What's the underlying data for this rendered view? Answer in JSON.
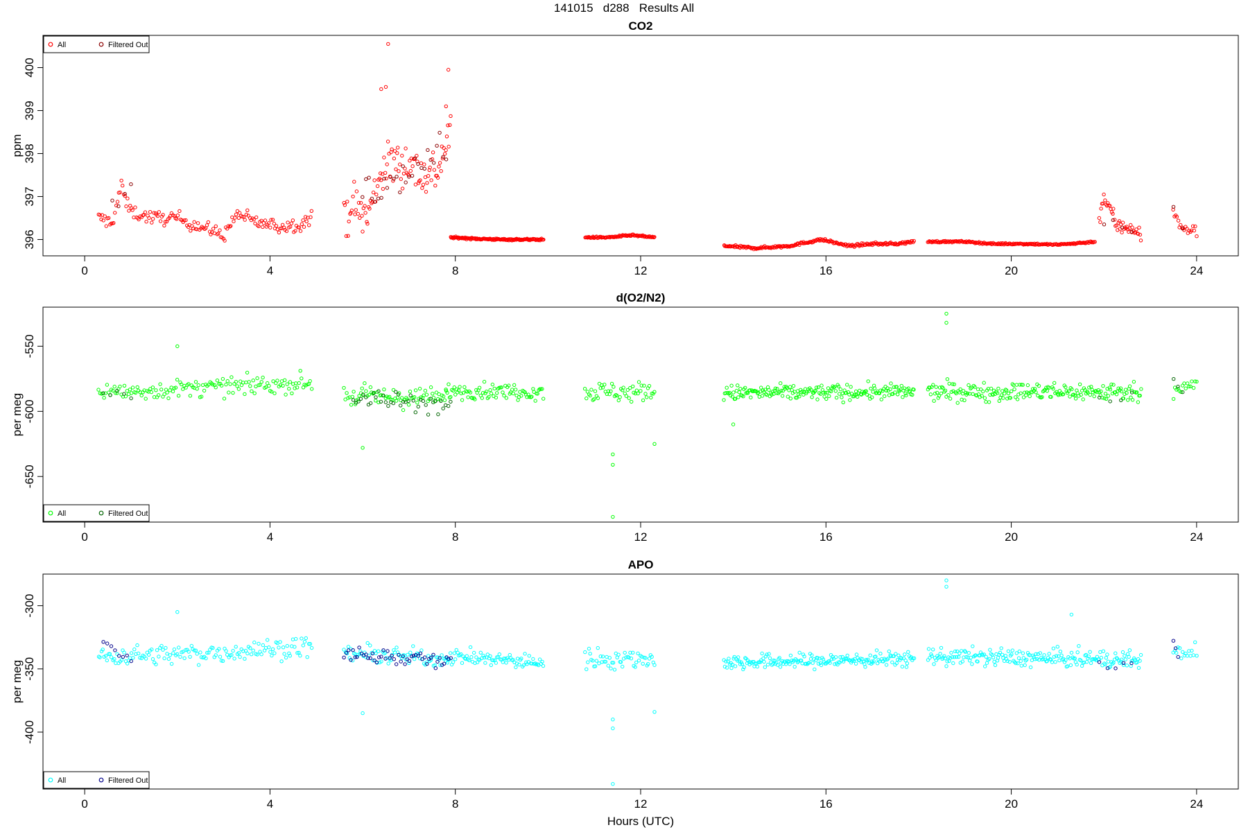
{
  "header": {
    "run": "141015",
    "code": "d288",
    "label": "Results All"
  },
  "colors": {
    "co2": "#ff0000",
    "o2n2": "#00ff00",
    "apo": "#00ffff",
    "filtered_co2": "#8b0000",
    "filtered_o2n2": "#006400",
    "filtered_apo": "#00008b"
  },
  "chart_data": [
    {
      "type": "scatter",
      "title": "CO2",
      "ylabel": "ppm",
      "xlabel": "",
      "xlim": [
        -0.9,
        24.9
      ],
      "ylim": [
        395.62,
        400.75
      ],
      "xticks": [
        0,
        4,
        8,
        12,
        16,
        20,
        24
      ],
      "yticks": [
        396,
        397,
        398,
        399,
        400
      ],
      "legend": {
        "position": "top-left",
        "entries": [
          "All",
          "Filtered Out"
        ]
      },
      "series": [
        {
          "name": "All",
          "segments": [
            {
              "x": [
                0.3,
                0.6,
                0.8,
                0.9,
                1.1,
                1.5,
                2.0,
                2.5,
                3.0,
                3.3,
                3.7,
                4.2,
                4.6,
                4.9
              ],
              "y": [
                396.5,
                396.4,
                397.3,
                396.8,
                396.6,
                396.5,
                396.5,
                396.3,
                396.1,
                396.6,
                396.4,
                396.3,
                396.35,
                396.5
              ],
              "noise": 0.16,
              "n": 170
            },
            {
              "x": [
                5.6,
                5.8,
                6.1,
                6.4,
                6.7,
                7.0,
                7.3,
                7.6,
                7.9
              ],
              "y": [
                396.6,
                396.8,
                396.5,
                397.6,
                397.8,
                397.8,
                397.5,
                397.6,
                398.5
              ],
              "noise": 0.55,
              "n": 110
            },
            {
              "x": [
                7.9,
                8.4,
                9.0,
                9.5,
                9.9
              ],
              "y": [
                396.05,
                396.02,
                396.0,
                396.0,
                396.0
              ],
              "noise": 0.02,
              "n": 160
            },
            {
              "x": [
                10.8,
                11.3,
                11.8,
                12.3
              ],
              "y": [
                396.05,
                396.05,
                396.1,
                396.05
              ],
              "noise": 0.02,
              "n": 90
            },
            {
              "x": [
                13.8,
                14.5,
                15.2,
                15.9,
                16.5,
                17.0,
                17.5,
                17.9
              ],
              "y": [
                395.85,
                395.8,
                395.85,
                396.0,
                395.85,
                395.9,
                395.9,
                395.95
              ],
              "noise": 0.03,
              "n": 230
            },
            {
              "x": [
                18.2,
                19.0,
                19.6,
                20.3,
                21.0,
                21.5,
                21.8
              ],
              "y": [
                395.95,
                395.95,
                395.9,
                395.9,
                395.88,
                395.92,
                395.95
              ],
              "noise": 0.02,
              "n": 200
            },
            {
              "x": [
                21.9,
                22.0,
                22.3,
                22.6,
                22.8
              ],
              "y": [
                396.5,
                397.0,
                396.3,
                396.3,
                396.1
              ],
              "noise": 0.2,
              "n": 45
            },
            {
              "x": [
                23.5,
                23.7,
                24.0
              ],
              "y": [
                396.6,
                396.25,
                396.2
              ],
              "noise": 0.12,
              "n": 20
            }
          ]
        },
        {
          "name": "Filtered Out",
          "segments": [
            {
              "x": [
                0.6,
                1.0
              ],
              "y": [
                396.8,
                397.2
              ],
              "noise": 0.25,
              "n": 4
            },
            {
              "x": [
                6.0,
                7.8
              ],
              "y": [
                397.0,
                398.0
              ],
              "noise": 0.5,
              "n": 28
            },
            {
              "x": [
                22.0,
                22.6
              ],
              "y": [
                396.5,
                396.3
              ],
              "noise": 0.15,
              "n": 4
            },
            {
              "x": [
                23.5,
                23.7
              ],
              "y": [
                396.7,
                396.3
              ],
              "noise": 0.1,
              "n": 2
            }
          ]
        }
      ],
      "outliers": [
        [
          6.55,
          400.55
        ],
        [
          7.85,
          399.95
        ],
        [
          6.5,
          399.55
        ],
        [
          7.8,
          399.1
        ],
        [
          6.4,
          399.5
        ]
      ]
    },
    {
      "type": "scatter",
      "title": "d(O2/N2)",
      "ylabel": "per meg",
      "xlabel": "",
      "xlim": [
        -0.9,
        24.9
      ],
      "ylim": [
        -685,
        -520
      ],
      "xticks": [
        0,
        4,
        8,
        12,
        16,
        20,
        24
      ],
      "yticks": [
        -650,
        -600,
        -550
      ],
      "legend": {
        "position": "bottom-left",
        "entries": [
          "All",
          "Filtered Out"
        ]
      },
      "series": [
        {
          "name": "All",
          "segments": [
            {
              "x": [
                0.3,
                2.5,
                4.9
              ],
              "y": [
                -586,
                -582,
                -578
              ],
              "noise": 7,
              "n": 150
            },
            {
              "x": [
                5.6,
                7.8
              ],
              "y": [
                -588,
                -590
              ],
              "noise": 8,
              "n": 75
            },
            {
              "x": [
                7.8,
                9.9
              ],
              "y": [
                -584,
                -585
              ],
              "noise": 6,
              "n": 85
            },
            {
              "x": [
                10.8,
                12.3
              ],
              "y": [
                -585,
                -585
              ],
              "noise": 8,
              "n": 55
            },
            {
              "x": [
                13.8,
                17.9
              ],
              "y": [
                -586,
                -585
              ],
              "noise": 6,
              "n": 200
            },
            {
              "x": [
                18.2,
                22.8
              ],
              "y": [
                -585,
                -585
              ],
              "noise": 7,
              "n": 210
            },
            {
              "x": [
                23.5,
                24.0
              ],
              "y": [
                -583,
                -580
              ],
              "noise": 6,
              "n": 16
            }
          ]
        },
        {
          "name": "Filtered Out",
          "segments": [
            {
              "x": [
                0.4,
                1.0
              ],
              "y": [
                -585,
                -590
              ],
              "noise": 5,
              "n": 5
            },
            {
              "x": [
                5.8,
                7.9
              ],
              "y": [
                -590,
                -595
              ],
              "noise": 8,
              "n": 40
            },
            {
              "x": [
                21.9,
                22.6
              ],
              "y": [
                -592,
                -590
              ],
              "noise": 4,
              "n": 4
            },
            {
              "x": [
                23.5,
                23.7
              ],
              "y": [
                -575,
                -585
              ],
              "noise": 4,
              "n": 3
            }
          ]
        }
      ],
      "outliers": [
        [
          18.6,
          -525
        ],
        [
          18.6,
          -532
        ],
        [
          6.0,
          -628
        ],
        [
          11.4,
          -633
        ],
        [
          11.4,
          -641
        ],
        [
          11.4,
          -681
        ],
        [
          12.3,
          -625
        ],
        [
          2.0,
          -550
        ],
        [
          14.0,
          -610
        ]
      ]
    },
    {
      "type": "scatter",
      "title": "APO",
      "ylabel": "per meg",
      "xlabel": "Hours (UTC)",
      "xlim": [
        -0.9,
        24.9
      ],
      "ylim": [
        -445,
        -275
      ],
      "xticks": [
        0,
        4,
        8,
        12,
        16,
        20,
        24
      ],
      "yticks": [
        -400,
        -350,
        -300
      ],
      "legend": {
        "position": "bottom-left",
        "entries": [
          "All",
          "Filtered Out"
        ]
      },
      "series": [
        {
          "name": "All",
          "segments": [
            {
              "x": [
                0.3,
                2.5,
                4.9
              ],
              "y": [
                -340,
                -338,
                -332
              ],
              "noise": 8,
              "n": 150
            },
            {
              "x": [
                5.6,
                7.8
              ],
              "y": [
                -338,
                -342
              ],
              "noise": 7,
              "n": 75
            },
            {
              "x": [
                7.8,
                9.9
              ],
              "y": [
                -340,
                -345
              ],
              "noise": 6,
              "n": 85
            },
            {
              "x": [
                10.8,
                12.3
              ],
              "y": [
                -342,
                -342
              ],
              "noise": 8,
              "n": 55
            },
            {
              "x": [
                13.8,
                17.9
              ],
              "y": [
                -345,
                -342
              ],
              "noise": 6,
              "n": 200
            },
            {
              "x": [
                18.2,
                22.8
              ],
              "y": [
                -340,
                -343
              ],
              "noise": 7,
              "n": 210
            },
            {
              "x": [
                23.5,
                24.0
              ],
              "y": [
                -338,
                -335
              ],
              "noise": 6,
              "n": 16
            }
          ]
        },
        {
          "name": "Filtered Out",
          "segments": [
            {
              "x": [
                0.4,
                1.0
              ],
              "y": [
                -330,
                -345
              ],
              "noise": 6,
              "n": 8
            },
            {
              "x": [
                5.6,
                7.9
              ],
              "y": [
                -338,
                -342
              ],
              "noise": 7,
              "n": 50
            },
            {
              "x": [
                21.9,
                22.6
              ],
              "y": [
                -347,
                -345
              ],
              "noise": 3,
              "n": 5
            },
            {
              "x": [
                23.5,
                23.6
              ],
              "y": [
                -326,
                -340
              ],
              "noise": 3,
              "n": 3
            }
          ]
        }
      ],
      "outliers": [
        [
          18.6,
          -280
        ],
        [
          18.6,
          -285
        ],
        [
          2.0,
          -305
        ],
        [
          6.0,
          -385
        ],
        [
          11.4,
          -390
        ],
        [
          11.4,
          -397
        ],
        [
          11.4,
          -441
        ],
        [
          12.3,
          -384
        ],
        [
          21.3,
          -307
        ]
      ]
    }
  ]
}
